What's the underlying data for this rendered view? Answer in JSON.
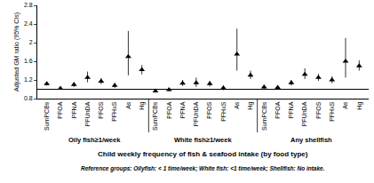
{
  "chart_data": {
    "type": "scatter",
    "y_label": "Adjusted GM ratio (95% CIs)",
    "x_label": "Child weekly frequency of fish & seafood intake (by food type)",
    "footnote": "Reference groups: Oilyfish: < 1 time/week; White fish: <1 time/week; Shellfish: No intake.",
    "color": "#000000",
    "marker": "triangle-up",
    "ylim": [
      0.8,
      2.8
    ],
    "yticks": [
      0.8,
      1.2,
      1.6,
      2,
      2.4,
      2.8
    ],
    "reference_value": 1,
    "grid": false,
    "groups": [
      {
        "name": "Oily fish≥1/week",
        "categories": [
          "SumPCBs",
          "PFOA",
          "PFNA",
          "PFUnDA",
          "PFOS",
          "PFHxS",
          "As",
          "Hg"
        ],
        "values": [
          1.12,
          1.02,
          1.1,
          1.25,
          1.17,
          1.08,
          1.7,
          1.42
        ],
        "ci_low": [
          1.08,
          1.0,
          1.05,
          1.15,
          1.11,
          1.03,
          1.3,
          1.32
        ],
        "ci_high": [
          1.16,
          1.05,
          1.15,
          1.38,
          1.24,
          1.14,
          2.25,
          1.52
        ]
      },
      {
        "name": "White fish≥1/week",
        "categories": [
          "SumPCBs",
          "PFOA",
          "PFNA",
          "PFUnDA",
          "PFOS",
          "PFHxS",
          "As",
          "Hg"
        ],
        "values": [
          0.96,
          0.99,
          1.13,
          1.14,
          1.12,
          1.03,
          1.75,
          1.3
        ],
        "ci_low": [
          0.93,
          0.96,
          1.07,
          1.05,
          1.06,
          0.98,
          1.4,
          1.22
        ],
        "ci_high": [
          0.99,
          1.02,
          1.2,
          1.25,
          1.18,
          1.08,
          2.3,
          1.4
        ]
      },
      {
        "name": "Any shellfish",
        "categories": [
          "SumPCBs",
          "PFOA",
          "PFNA",
          "PFUnDA",
          "PFOS",
          "PFHxS",
          "As",
          "Hg"
        ],
        "values": [
          1.05,
          1.04,
          1.14,
          1.32,
          1.25,
          1.2,
          1.6,
          1.5
        ],
        "ci_low": [
          1.01,
          1.01,
          1.08,
          1.22,
          1.18,
          1.13,
          1.25,
          1.4
        ],
        "ci_high": [
          1.09,
          1.07,
          1.2,
          1.45,
          1.33,
          1.28,
          2.1,
          1.62
        ]
      }
    ]
  }
}
